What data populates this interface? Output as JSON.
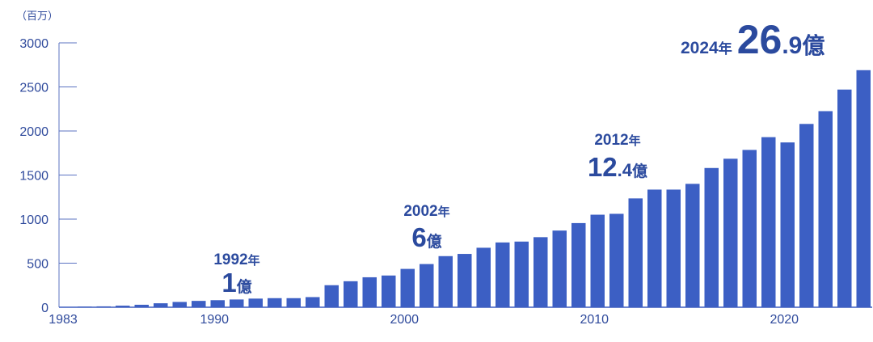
{
  "chart_data": {
    "type": "bar",
    "unit_label": "（百万）",
    "ylim": [
      0,
      3000
    ],
    "y_ticks": [
      "0",
      "500",
      "1000",
      "1500",
      "2000",
      "2500",
      "3000"
    ],
    "x_ticks": [
      "1983",
      "1990",
      "2000",
      "2010",
      "2020"
    ],
    "categories": [
      "1983",
      "1984",
      "1985",
      "1986",
      "1987",
      "1988",
      "1989",
      "1990",
      "1991",
      "1992",
      "1993",
      "1994",
      "1995",
      "1996",
      "1997",
      "1998",
      "1999",
      "2000",
      "2001",
      "2002",
      "2003",
      "2004",
      "2005",
      "2006",
      "2007",
      "2008",
      "2009",
      "2010",
      "2011",
      "2012",
      "2013",
      "2014",
      "2015",
      "2016",
      "2017",
      "2018",
      "2019",
      "2020",
      "2021",
      "2022",
      "2023",
      "2024"
    ],
    "values": [
      3,
      10,
      18,
      28,
      45,
      60,
      72,
      80,
      88,
      98,
      103,
      103,
      115,
      250,
      295,
      340,
      360,
      435,
      490,
      580,
      605,
      675,
      735,
      745,
      795,
      870,
      955,
      1050,
      1060,
      1235,
      1335,
      1335,
      1400,
      1580,
      1685,
      1785,
      1930,
      1870,
      2080,
      2225,
      2470,
      2690
    ],
    "bar_color": "#3c5fc4",
    "annotations": [
      {
        "year": "1992",
        "year_text": "1992",
        "nen": "年",
        "value_int": "1",
        "value_dec": "",
        "oku": "億"
      },
      {
        "year": "2002",
        "year_text": "2002",
        "nen": "年",
        "value_int": "6",
        "value_dec": "",
        "oku": "億"
      },
      {
        "year": "2012",
        "year_text": "2012",
        "nen": "年",
        "value_int": "12",
        "value_dec": ".4",
        "oku": "億"
      },
      {
        "year": "2024",
        "year_text": "2024",
        "nen": "年",
        "value_int": "26",
        "value_dec": ".9",
        "oku": "億"
      }
    ]
  }
}
